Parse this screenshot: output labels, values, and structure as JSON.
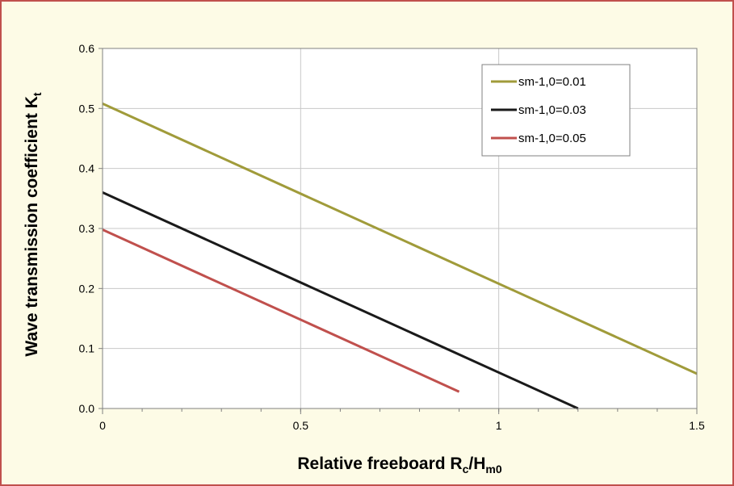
{
  "chart_data": {
    "type": "line",
    "xlabel": "Relative freeboard R",
    "xlabel_sub1": "c",
    "xlabel_mid": "/H",
    "xlabel_sub2": "m0",
    "ylabel": "Wave transmission coefficient K",
    "ylabel_sub": "t",
    "xlim": [
      0,
      1.5
    ],
    "ylim": [
      0,
      0.6
    ],
    "xticks": [
      0,
      0.5,
      1,
      1.5
    ],
    "xtick_labels": [
      "0",
      "0.5",
      "1",
      "1.5"
    ],
    "yticks": [
      0,
      0.1,
      0.2,
      0.3,
      0.4,
      0.5,
      0.6
    ],
    "ytick_labels": [
      "0.0",
      "0.1",
      "0.2",
      "0.3",
      "0.4",
      "0.5",
      "0.6"
    ],
    "grid": true,
    "legend_position": "top-right",
    "series": [
      {
        "name": "sm-1,0=0.01",
        "color": "#a09b3a",
        "x": [
          0,
          1.5
        ],
        "y": [
          0.508,
          0.058
        ]
      },
      {
        "name": "sm-1,0=0.03",
        "color": "#1a1a1a",
        "x": [
          0,
          1.2
        ],
        "y": [
          0.36,
          0.0
        ]
      },
      {
        "name": "sm-1,0=0.05",
        "color": "#c0504d",
        "x": [
          0,
          0.9
        ],
        "y": [
          0.298,
          0.028
        ]
      }
    ]
  }
}
